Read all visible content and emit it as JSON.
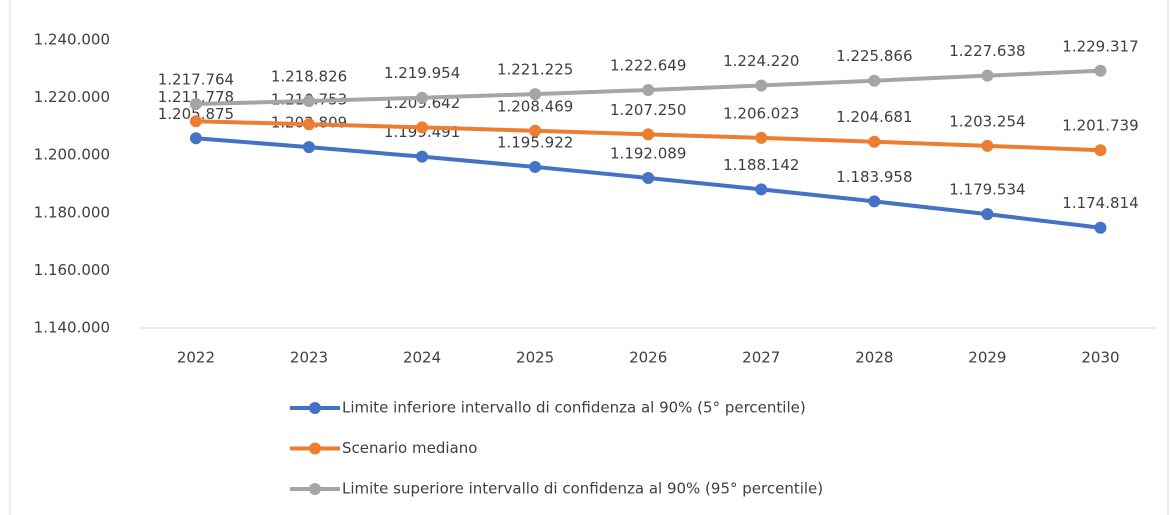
{
  "chart_data": {
    "type": "line",
    "categories": [
      "2022",
      "2023",
      "2024",
      "2025",
      "2026",
      "2027",
      "2028",
      "2029",
      "2030"
    ],
    "series": [
      {
        "name": "Limite inferiore intervallo di confidenza al 90% (5° percentile)",
        "color": "#4472c4",
        "values": [
          1205875,
          1202809,
          1199491,
          1195922,
          1192089,
          1188142,
          1183958,
          1179534,
          1174814
        ],
        "value_labels": [
          "1.205.875",
          "1.202.809",
          "1.199.491",
          "1.195.922",
          "1.192.089",
          "1.188.142",
          "1.183.958",
          "1.179.534",
          "1.174.814"
        ]
      },
      {
        "name": "Scenario mediano",
        "color": "#ed7d31",
        "values": [
          1211778,
          1210753,
          1209642,
          1208469,
          1207250,
          1206023,
          1204681,
          1203254,
          1201739
        ],
        "value_labels": [
          "1.211.778",
          "1.210.753",
          "1.209.642",
          "1.208.469",
          "1.207.250",
          "1.206.023",
          "1.204.681",
          "1.203.254",
          "1.201.739"
        ]
      },
      {
        "name": "Limite superiore intervallo di confidenza al 90% (95° percentile)",
        "color": "#a5a5a5",
        "values": [
          1217764,
          1218826,
          1219954,
          1221225,
          1222649,
          1224220,
          1225866,
          1227638,
          1229317
        ],
        "value_labels": [
          "1.217.764",
          "1.218.826",
          "1.219.954",
          "1.221.225",
          "1.222.649",
          "1.224.220",
          "1.225.866",
          "1.227.638",
          "1.229.317"
        ]
      }
    ],
    "ylim": [
      1140000,
      1240000
    ],
    "yticks": [
      {
        "value": 1140000,
        "label": "1.140.000"
      },
      {
        "value": 1160000,
        "label": "1.160.000"
      },
      {
        "value": 1180000,
        "label": "1.180.000"
      },
      {
        "value": 1200000,
        "label": "1.200.000"
      },
      {
        "value": 1220000,
        "label": "1.220.000"
      },
      {
        "value": 1240000,
        "label": "1.240.000"
      }
    ],
    "grid": false,
    "legend": "bottom"
  }
}
